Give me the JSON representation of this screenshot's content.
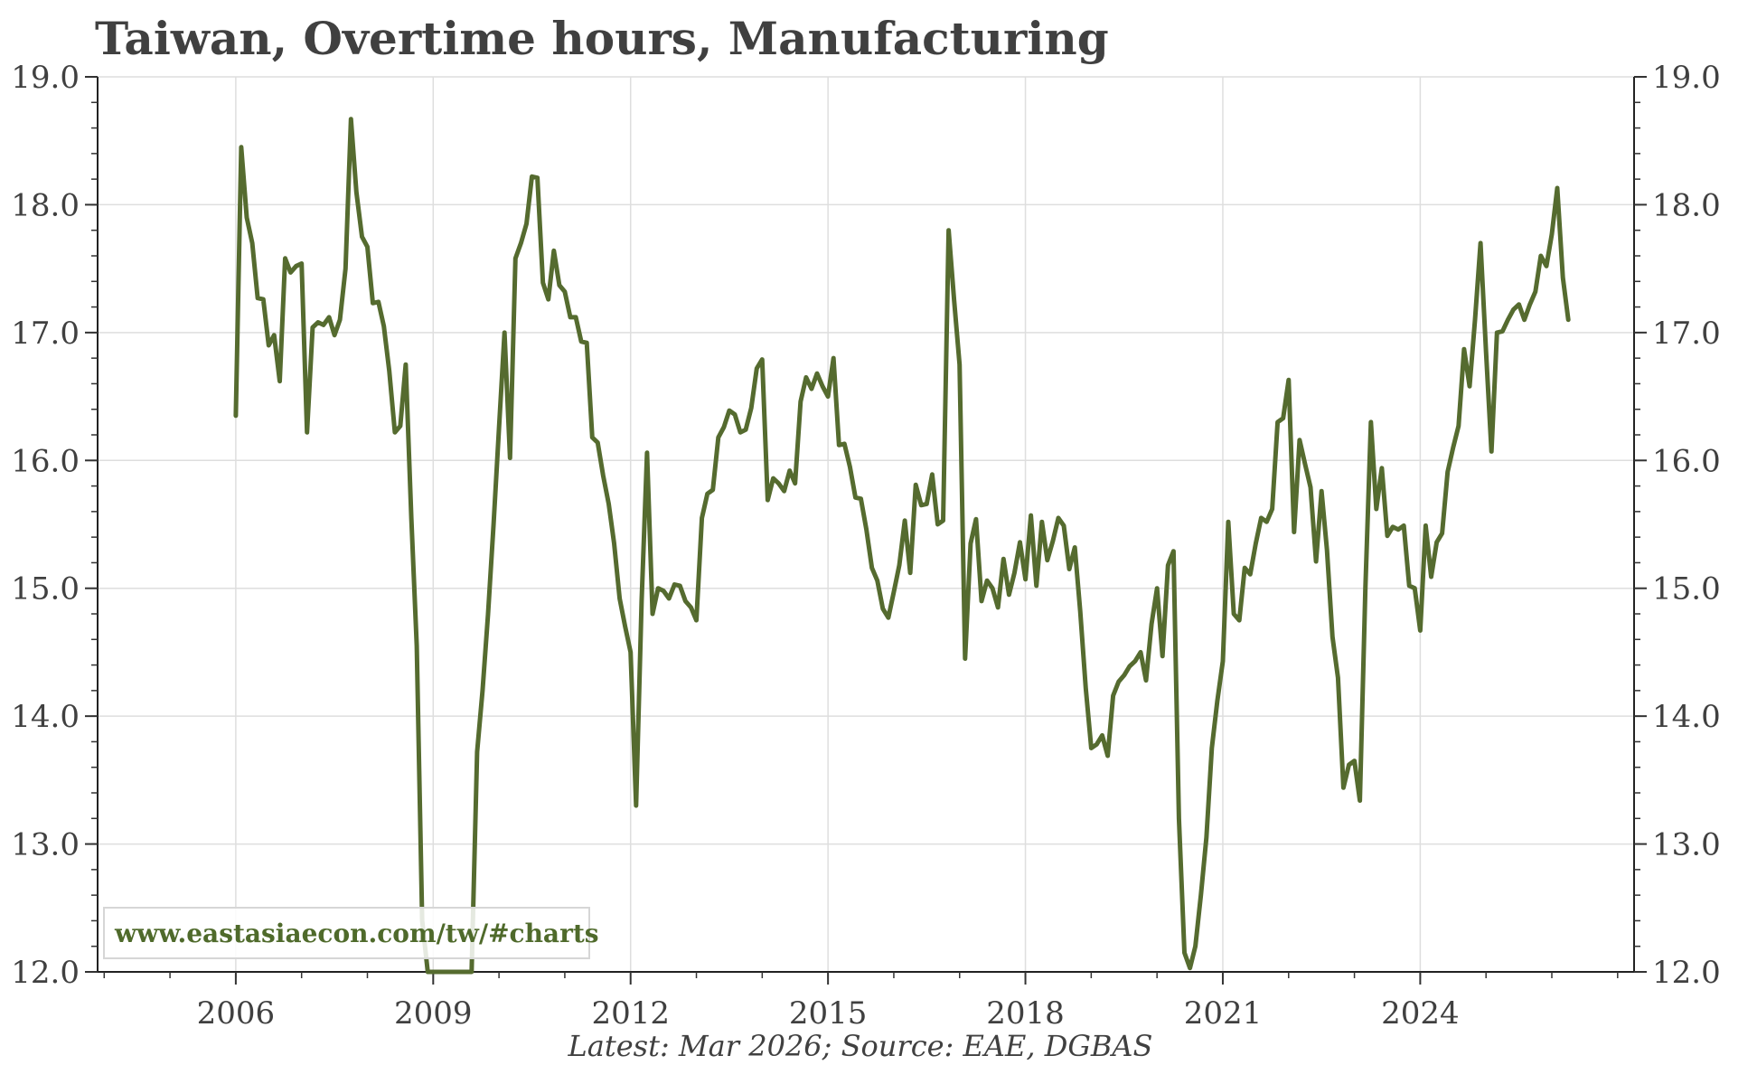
{
  "chart_data": {
    "type": "line",
    "title": "Taiwan, Overtime hours, Manufacturing",
    "subtitle": "",
    "xlabel": "",
    "ylabel": "",
    "source_note": "Latest: Mar 2026; Source: EAE, DGBAS",
    "watermark": "www.eastasiaecon.com/tw/#charts",
    "ylim": [
      12.0,
      19.0
    ],
    "xlim": [
      2003.9,
      2027.25
    ],
    "y_ticks": [
      "12.0",
      "13.0",
      "14.0",
      "15.0",
      "16.0",
      "17.0",
      "18.0",
      "19.0"
    ],
    "x_ticks": [
      "2006",
      "2009",
      "2012",
      "2015",
      "2018",
      "2021",
      "2024"
    ],
    "grid": true,
    "line_color": "#556b2f",
    "series": [
      {
        "name": "",
        "x": [
          2006.0,
          2006.083,
          2006.167,
          2006.25,
          2006.333,
          2006.417,
          2006.5,
          2006.583,
          2006.667,
          2006.75,
          2006.833,
          2006.917,
          2007.0,
          2007.083,
          2007.167,
          2007.25,
          2007.333,
          2007.417,
          2007.5,
          2007.583,
          2007.667,
          2007.75,
          2007.833,
          2007.917,
          2008.0,
          2008.083,
          2008.167,
          2008.25,
          2008.333,
          2008.417,
          2008.5,
          2008.583,
          2008.667,
          2008.75,
          2008.833,
          2008.917,
          2009.583,
          2009.667,
          2009.75,
          2009.833,
          2009.917,
          2010.0,
          2010.083,
          2010.167,
          2010.25,
          2010.333,
          2010.417,
          2010.5,
          2010.583,
          2010.667,
          2010.75,
          2010.833,
          2010.917,
          2011.0,
          2011.083,
          2011.167,
          2011.25,
          2011.333,
          2011.417,
          2011.5,
          2011.583,
          2011.667,
          2011.75,
          2011.833,
          2011.917,
          2012.0,
          2012.083,
          2012.167,
          2012.25,
          2012.333,
          2012.417,
          2012.5,
          2012.583,
          2012.667,
          2012.75,
          2012.833,
          2012.917,
          2013.0,
          2013.083,
          2013.167,
          2013.25,
          2013.333,
          2013.417,
          2013.5,
          2013.583,
          2013.667,
          2013.75,
          2013.833,
          2013.917,
          2014.0,
          2014.083,
          2014.167,
          2014.25,
          2014.333,
          2014.417,
          2014.5,
          2014.583,
          2014.667,
          2014.75,
          2014.833,
          2014.917,
          2015.0,
          2015.083,
          2015.167,
          2015.25,
          2015.333,
          2015.417,
          2015.5,
          2015.583,
          2015.667,
          2015.75,
          2015.833,
          2015.917,
          2016.0,
          2016.083,
          2016.167,
          2016.25,
          2016.333,
          2016.417,
          2016.5,
          2016.583,
          2016.667,
          2016.75,
          2016.833,
          2016.917,
          2017.0,
          2017.083,
          2017.167,
          2017.25,
          2017.333,
          2017.417,
          2017.5,
          2017.583,
          2017.667,
          2017.75,
          2017.833,
          2017.917,
          2018.0,
          2018.083,
          2018.167,
          2018.25,
          2018.333,
          2018.417,
          2018.5,
          2018.583,
          2018.667,
          2018.75,
          2018.833,
          2018.917,
          2019.0,
          2019.083,
          2019.167,
          2019.25,
          2019.333,
          2019.417,
          2019.5,
          2019.583,
          2019.667,
          2019.75,
          2019.833,
          2019.917,
          2020.0,
          2020.083,
          2020.167,
          2020.25,
          2020.333,
          2020.417,
          2020.5,
          2020.583,
          2020.667,
          2020.75,
          2020.833,
          2020.917,
          2021.0,
          2021.083,
          2021.167,
          2021.25,
          2021.333,
          2021.417,
          2021.5,
          2021.583,
          2021.667,
          2021.75,
          2021.833,
          2021.917,
          2022.0,
          2022.083,
          2022.167,
          2022.25,
          2022.333,
          2022.417,
          2022.5,
          2022.583,
          2022.667,
          2022.75,
          2022.833,
          2022.917,
          2023.0,
          2023.083,
          2023.167,
          2023.25,
          2023.333,
          2023.417,
          2023.5,
          2023.583,
          2023.667,
          2023.75,
          2023.833,
          2023.917,
          2024.0,
          2024.083,
          2024.167,
          2024.25,
          2024.333,
          2024.417,
          2024.5,
          2024.583,
          2024.667,
          2024.75,
          2024.833,
          2024.917,
          2025.0,
          2025.083,
          2025.167,
          2025.25,
          2025.333,
          2025.417,
          2025.5,
          2025.583,
          2025.667,
          2025.75,
          2025.833,
          2025.917,
          2026.0,
          2026.083,
          2026.167,
          2026.25
        ],
        "values": [
          16.35,
          18.45,
          17.9,
          17.7,
          17.27,
          17.26,
          16.9,
          16.98,
          16.62,
          17.58,
          17.47,
          17.52,
          17.54,
          16.22,
          17.04,
          17.08,
          17.06,
          17.12,
          16.98,
          17.1,
          17.5,
          18.67,
          18.1,
          17.75,
          17.67,
          17.23,
          17.24,
          17.05,
          16.7,
          16.22,
          16.27,
          16.75,
          15.55,
          14.55,
          12.4,
          12.0,
          12.0,
          13.72,
          14.2,
          14.8,
          15.5,
          16.25,
          17.0,
          16.02,
          17.58,
          17.7,
          17.85,
          18.22,
          18.21,
          17.39,
          17.26,
          17.64,
          17.37,
          17.32,
          17.12,
          17.12,
          16.93,
          16.92,
          16.18,
          16.14,
          15.88,
          15.66,
          15.35,
          14.92,
          14.7,
          14.5,
          13.3,
          14.9,
          16.06,
          14.8,
          15.0,
          14.98,
          14.92,
          15.03,
          15.02,
          14.9,
          14.85,
          14.75,
          15.55,
          15.74,
          15.77,
          16.18,
          16.26,
          16.39,
          16.36,
          16.22,
          16.24,
          16.41,
          16.72,
          16.79,
          15.69,
          15.86,
          15.82,
          15.76,
          15.92,
          15.82,
          16.46,
          16.65,
          16.56,
          16.68,
          16.58,
          16.5,
          16.8,
          16.12,
          16.13,
          15.95,
          15.71,
          15.7,
          15.46,
          15.16,
          15.06,
          14.84,
          14.77,
          14.97,
          15.18,
          15.53,
          15.12,
          15.81,
          15.65,
          15.66,
          15.89,
          15.5,
          15.53,
          17.8,
          17.25,
          16.75,
          14.45,
          15.35,
          15.54,
          14.9,
          15.06,
          15.0,
          14.85,
          15.23,
          14.95,
          15.12,
          15.36,
          15.07,
          15.57,
          15.02,
          15.52,
          15.22,
          15.37,
          15.55,
          15.49,
          15.15,
          15.32,
          14.82,
          14.22,
          13.75,
          13.78,
          13.85,
          13.69,
          14.16,
          14.27,
          14.32,
          14.39,
          14.43,
          14.5,
          14.28,
          14.72,
          15.0,
          14.47,
          15.18,
          15.29,
          13.2,
          12.15,
          12.03,
          12.2,
          12.6,
          13.05,
          13.75,
          14.12,
          14.43,
          15.52,
          14.8,
          14.75,
          15.16,
          15.11,
          15.35,
          15.55,
          15.52,
          15.62,
          16.3,
          16.33,
          16.63,
          15.44,
          16.16,
          15.97,
          15.79,
          15.21,
          15.76,
          15.3,
          14.62,
          14.3,
          13.44,
          13.62,
          13.65,
          13.34,
          15.0,
          16.3,
          15.62,
          15.94,
          15.41,
          15.48,
          15.46,
          15.49,
          15.02,
          15.0,
          14.67,
          15.49,
          15.09,
          15.36,
          15.43,
          15.91,
          16.1,
          16.27,
          16.87,
          16.58,
          17.1,
          17.7,
          16.85,
          16.07,
          17.0,
          17.01,
          17.1,
          17.18,
          17.22,
          17.1,
          17.22,
          17.32,
          17.6,
          17.52,
          17.77,
          18.13,
          17.43,
          17.1
        ]
      }
    ]
  }
}
